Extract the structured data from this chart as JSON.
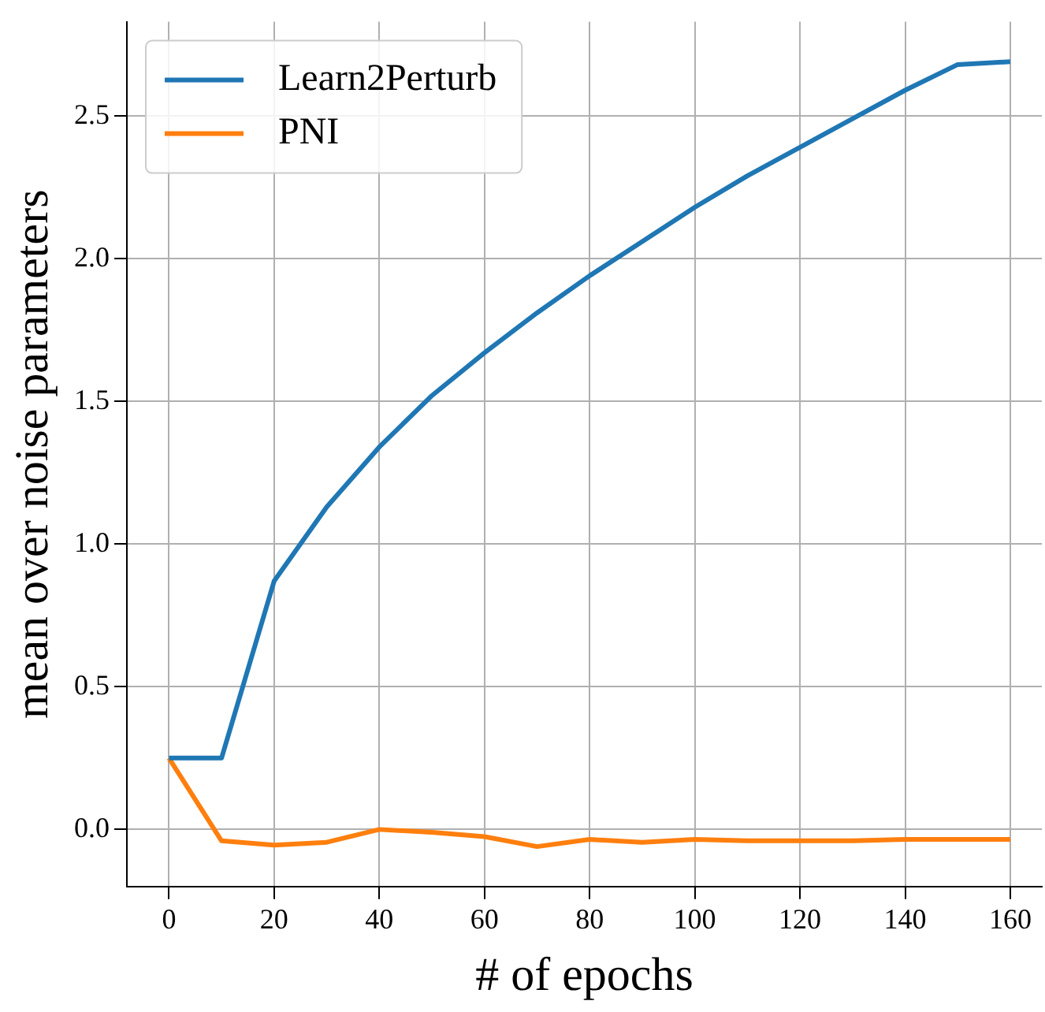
{
  "chart_data": {
    "type": "line",
    "xlabel": "# of epochs",
    "ylabel": "mean over noise parameters",
    "x": [
      0,
      10,
      20,
      30,
      40,
      50,
      60,
      70,
      80,
      90,
      100,
      110,
      120,
      130,
      140,
      150,
      160
    ],
    "series": [
      {
        "name": "Learn2Perturb",
        "color": "#1f77b4",
        "values": [
          0.25,
          0.25,
          0.87,
          1.13,
          1.34,
          1.52,
          1.67,
          1.81,
          1.94,
          2.06,
          2.18,
          2.29,
          2.39,
          2.49,
          2.59,
          2.68,
          2.69
        ]
      },
      {
        "name": "PNI",
        "color": "#ff7f0e",
        "values": [
          0.25,
          -0.04,
          -0.055,
          -0.045,
          0,
          -0.01,
          -0.025,
          -0.06,
          -0.035,
          -0.045,
          -0.035,
          -0.04,
          -0.04,
          -0.04,
          -0.035,
          -0.035,
          -0.035
        ]
      }
    ],
    "xlim": [
      -8,
      166
    ],
    "ylim": [
      -0.2,
      2.83
    ],
    "xticks": [
      0,
      20,
      40,
      60,
      80,
      100,
      120,
      140,
      160
    ],
    "yticks": [
      {
        "value": 0,
        "label": "0.0"
      },
      {
        "value": 0.5,
        "label": "0.5"
      },
      {
        "value": 1,
        "label": "1.0"
      },
      {
        "value": 1.5,
        "label": "1.5"
      },
      {
        "value": 2,
        "label": "2.0"
      },
      {
        "value": 2.5,
        "label": "2.5"
      }
    ],
    "grid": true,
    "legend": "top left",
    "marker": "none",
    "line_style": "solid"
  }
}
